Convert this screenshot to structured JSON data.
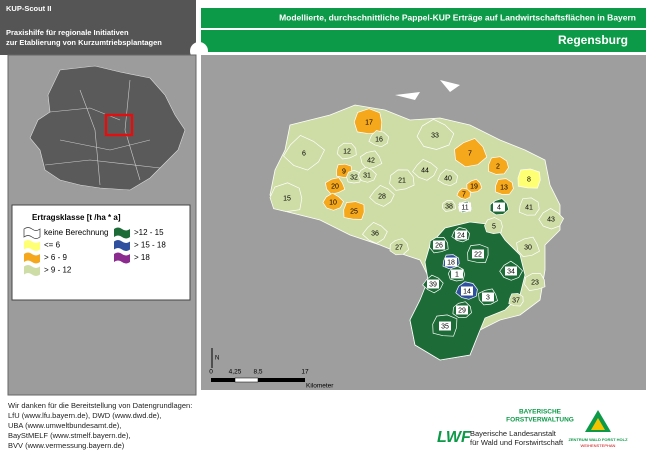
{
  "header": {
    "product": "KUP-Scout II",
    "subtitle_line1": "Praxishilfe für regionale Initiativen",
    "subtitle_line2": "zur Etablierung von Kurzumtriebsplantagen",
    "title": "Modellierte, durchschnittliche Pappel-KUP Erträge auf Landwirtschaftsflächen in Bayern",
    "region": "Regensburg"
  },
  "legend": {
    "title": "Ertragsklasse [t /ha * a]",
    "items": [
      {
        "label": "keine Berechnung",
        "color": "#ffffff"
      },
      {
        "label": "<= 6",
        "color": "#ffff73"
      },
      {
        "label": "> 6 - 9",
        "color": "#f5a81c"
      },
      {
        "label": "> 9 - 12",
        "color": "#cedca6"
      },
      {
        "label": ">12 - 15",
        "color": "#1d6b37"
      },
      {
        "label": "> 15 - 18",
        "color": "#2f4f9f"
      },
      {
        "label": "> 18",
        "color": "#8b2a8f"
      }
    ]
  },
  "regions": [
    {
      "label": "17",
      "class": 2
    },
    {
      "label": "33",
      "class": 3
    },
    {
      "label": "6",
      "class": 3
    },
    {
      "label": "16",
      "class": 3
    },
    {
      "label": "12",
      "class": 3
    },
    {
      "label": "42",
      "class": 3
    },
    {
      "label": "7",
      "class": 2
    },
    {
      "label": "2",
      "class": 2
    },
    {
      "label": "9",
      "class": 2
    },
    {
      "label": "32",
      "class": 3
    },
    {
      "label": "31",
      "class": 3
    },
    {
      "label": "44",
      "class": 3
    },
    {
      "label": "40",
      "class": 3
    },
    {
      "label": "21",
      "class": 3
    },
    {
      "label": "20",
      "class": 2
    },
    {
      "label": "19",
      "class": 2
    },
    {
      "label": "13",
      "class": 2
    },
    {
      "label": "8",
      "class": 1
    },
    {
      "label": "15",
      "class": 3
    },
    {
      "label": "10",
      "class": 2
    },
    {
      "label": "28",
      "class": 3
    },
    {
      "label": "7",
      "class": 2
    },
    {
      "label": "38",
      "class": 3
    },
    {
      "label": "11",
      "class": 4
    },
    {
      "label": "4",
      "class": 4
    },
    {
      "label": "41",
      "class": 3
    },
    {
      "label": "25",
      "class": 2
    },
    {
      "label": "5",
      "class": 3
    },
    {
      "label": "43",
      "class": 3
    },
    {
      "label": "36",
      "class": 3
    },
    {
      "label": "24",
      "class": 4
    },
    {
      "label": "26",
      "class": 4
    },
    {
      "label": "30",
      "class": 3
    },
    {
      "label": "27",
      "class": 3
    },
    {
      "label": "18",
      "class": 5
    },
    {
      "label": "22",
      "class": 4
    },
    {
      "label": "1",
      "class": 4
    },
    {
      "label": "34",
      "class": 4
    },
    {
      "label": "39",
      "class": 4
    },
    {
      "label": "14",
      "class": 5
    },
    {
      "label": "23",
      "class": 3
    },
    {
      "label": "3",
      "class": 4
    },
    {
      "label": "29",
      "class": 4
    },
    {
      "label": "37",
      "class": 3
    },
    {
      "label": "35",
      "class": 4
    }
  ],
  "scale": {
    "ticks": [
      "0",
      "4,25",
      "8,5",
      "17"
    ],
    "unit": "Kilometer"
  },
  "north": "N",
  "credits": [
    "Wir danken für die Bereitstellung von Datengrundlagen:",
    "LfU (www.lfu.bayern.de), DWD (www.dwd.de),",
    "UBA (www.umweltbundesamt.de),",
    "BayStMELF (www.stmelf.bayern.de),",
    "BVV (www.vermessung.bayern.de)"
  ],
  "logos": {
    "forst_line1": "BAYERISCHE",
    "forst_line2": "FORSTVERWALTUNG",
    "lwf": "LWF",
    "lwf_line1": "Bayerische Landesanstalt",
    "lwf_line2": "für Wald und Forstwirtschaft",
    "zentrum_line1": "ZENTRUM WALD FORST HOLZ",
    "zentrum_line2": "WEIHENSTEPHAN"
  }
}
